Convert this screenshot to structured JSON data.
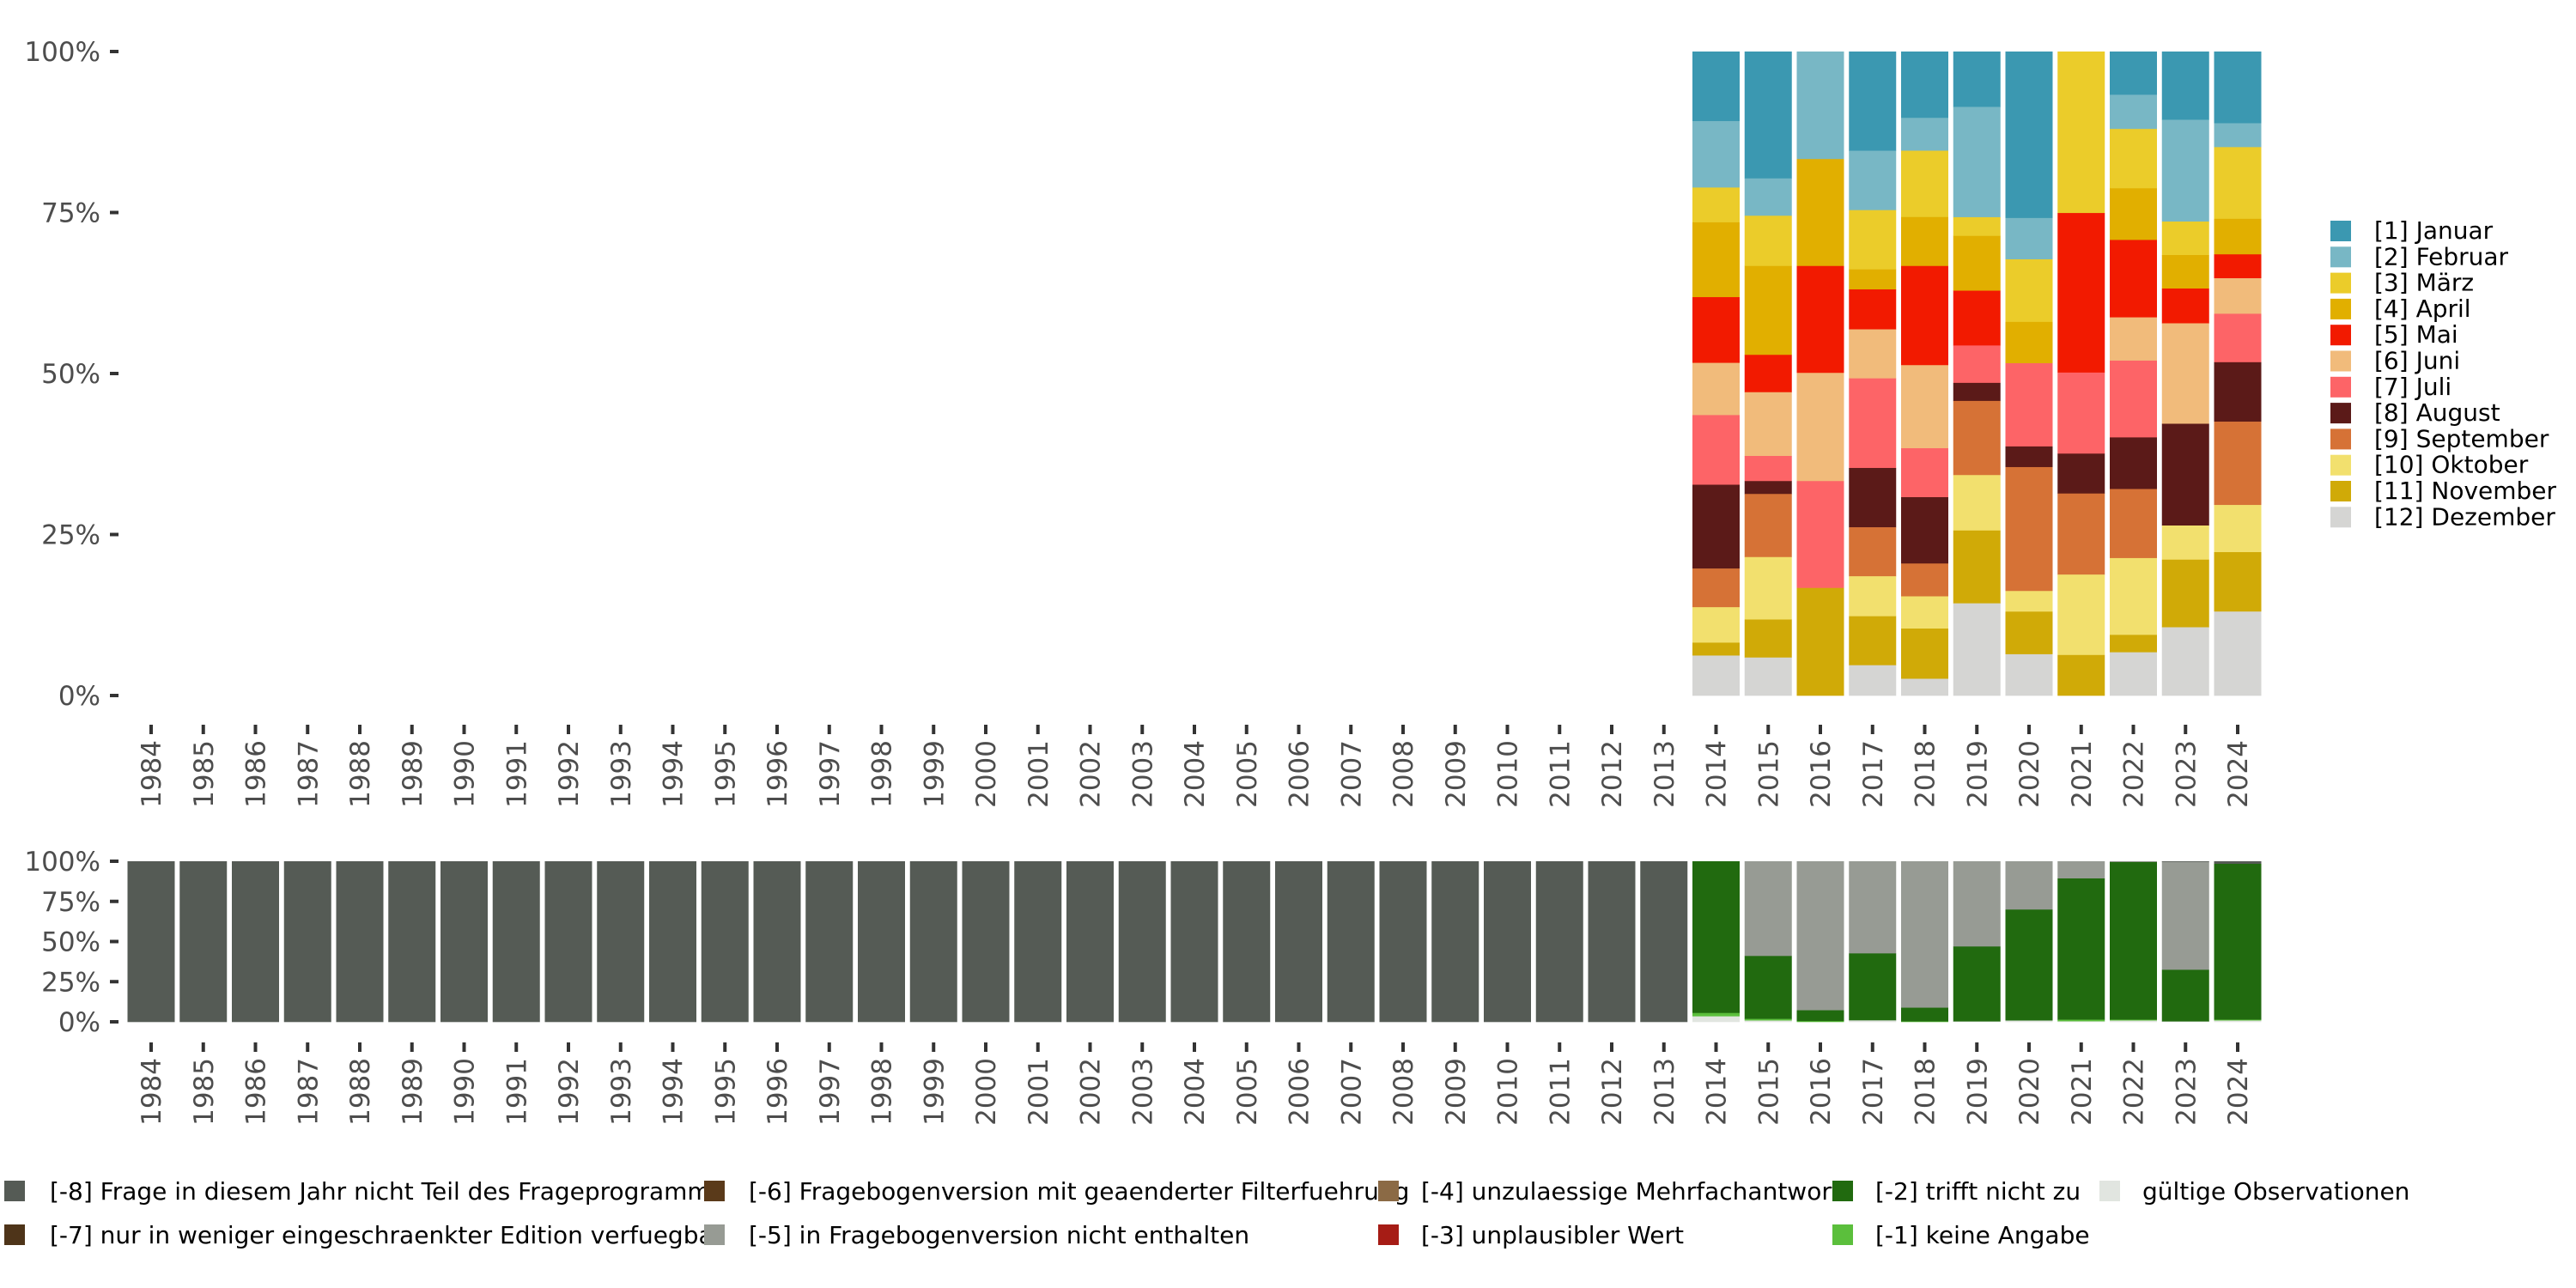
{
  "chart_data": [
    {
      "type": "bar",
      "stacked": true,
      "normalized": true,
      "title": "",
      "xlabel": "",
      "ylabel": "",
      "ylim": [
        0,
        100
      ],
      "yticks": [
        "0%",
        "25%",
        "50%",
        "75%",
        "100%"
      ],
      "grid": false,
      "legend_position": "right",
      "categories": [
        "1984",
        "1985",
        "1986",
        "1987",
        "1988",
        "1989",
        "1990",
        "1991",
        "1992",
        "1993",
        "1994",
        "1995",
        "1996",
        "1997",
        "1998",
        "1999",
        "2000",
        "2001",
        "2002",
        "2003",
        "2004",
        "2005",
        "2006",
        "2007",
        "2008",
        "2009",
        "2010",
        "2011",
        "2012",
        "2013",
        "2014",
        "2015",
        "2016",
        "2017",
        "2018",
        "2019",
        "2020",
        "2021",
        "2022",
        "2023",
        "2024"
      ],
      "series_years": [
        "2014",
        "2015",
        "2016",
        "2017",
        "2018",
        "2019",
        "2020",
        "2021",
        "2022",
        "2023",
        "2024"
      ],
      "series": [
        {
          "name": "[1] Januar",
          "color": "#3b98b1",
          "values": [
            10.8,
            19.7,
            0,
            15.4,
            10.3,
            8.6,
            25.8,
            0,
            6.7,
            10.6,
            11.1
          ]
        },
        {
          "name": "[2] Februar",
          "color": "#78b7c5",
          "values": [
            10.3,
            5.8,
            16.7,
            9.2,
            5.1,
            17.1,
            6.4,
            0,
            5.3,
            15.8,
            3.7
          ]
        },
        {
          "name": "[3] März",
          "color": "#ebcc2a",
          "values": [
            5.4,
            7.8,
            0,
            9.2,
            10.3,
            2.9,
            9.7,
            25.1,
            9.2,
            5.2,
            11.1
          ]
        },
        {
          "name": "[4] April",
          "color": "#e1af00",
          "values": [
            11.6,
            13.8,
            16.6,
            3.1,
            7.6,
            8.5,
            6.4,
            0,
            8.0,
            5.2,
            5.5
          ]
        },
        {
          "name": "[5] Mai",
          "color": "#f21a00",
          "values": [
            10.2,
            5.8,
            16.6,
            6.2,
            15.4,
            8.5,
            0,
            24.8,
            12.0,
            5.4,
            3.7
          ]
        },
        {
          "name": "[6] Juni",
          "color": "#f1bb7b",
          "values": [
            8.1,
            9.9,
            16.8,
            7.6,
            12.9,
            0,
            0,
            0,
            6.7,
            15.6,
            5.5
          ]
        },
        {
          "name": "[7] Juli",
          "color": "#fd6467",
          "values": [
            10.8,
            3.9,
            16.6,
            13.9,
            7.6,
            5.8,
            12.9,
            12.6,
            11.9,
            0,
            7.5
          ]
        },
        {
          "name": "[8] August",
          "color": "#5b1a18",
          "values": [
            13.0,
            2.0,
            0,
            9.2,
            10.3,
            2.8,
            3.2,
            6.2,
            8.0,
            15.8,
            9.2
          ]
        },
        {
          "name": "[9] September",
          "color": "#d67236",
          "values": [
            6.0,
            9.8,
            0,
            7.6,
            5.1,
            11.5,
            19.2,
            12.6,
            10.7,
            0,
            12.9
          ]
        },
        {
          "name": "[10] Oktober",
          "color": "#f2e06e",
          "values": [
            5.5,
            9.7,
            0,
            6.2,
            5.0,
            8.6,
            3.2,
            12.5,
            11.9,
            5.3,
            7.3
          ]
        },
        {
          "name": "[11] November",
          "color": "#d0aa07",
          "values": [
            2.0,
            5.9,
            16.7,
            7.6,
            7.8,
            11.3,
            6.6,
            6.3,
            2.7,
            10.5,
            9.2
          ]
        },
        {
          "name": "[12] Dezember",
          "color": "#d5d5d3",
          "values": [
            6.2,
            5.9,
            0,
            4.7,
            2.6,
            14.3,
            6.4,
            0,
            6.7,
            10.6,
            13.0
          ]
        }
      ]
    },
    {
      "type": "bar",
      "stacked": true,
      "normalized": true,
      "title": "",
      "xlabel": "",
      "ylabel": "",
      "ylim": [
        0,
        100
      ],
      "yticks": [
        "0%",
        "25%",
        "50%",
        "75%",
        "100%"
      ],
      "grid": false,
      "legend_position": "bottom",
      "categories": [
        "1984",
        "1985",
        "1986",
        "1987",
        "1988",
        "1989",
        "1990",
        "1991",
        "1992",
        "1993",
        "1994",
        "1995",
        "1996",
        "1997",
        "1998",
        "1999",
        "2000",
        "2001",
        "2002",
        "2003",
        "2004",
        "2005",
        "2006",
        "2007",
        "2008",
        "2009",
        "2010",
        "2011",
        "2012",
        "2013",
        "2014",
        "2015",
        "2016",
        "2017",
        "2018",
        "2019",
        "2020",
        "2021",
        "2022",
        "2023",
        "2024"
      ],
      "series": [
        {
          "name": "[-8] Frage in diesem Jahr nicht Teil des Frageprogramms",
          "color": "#555b55",
          "values": [
            100,
            100,
            100,
            100,
            100,
            100,
            100,
            100,
            100,
            100,
            100,
            100,
            100,
            100,
            100,
            100,
            100,
            100,
            100,
            100,
            100,
            100,
            100,
            100,
            100,
            100,
            100,
            100,
            100,
            100,
            0,
            0,
            0,
            0,
            0,
            0,
            0,
            0,
            0,
            0.4,
            1.6
          ]
        },
        {
          "name": "[-7] nur in weniger eingeschraenkter Edition verfuegbar",
          "color": "#4e3419",
          "values": [
            0,
            0,
            0,
            0,
            0,
            0,
            0,
            0,
            0,
            0,
            0,
            0,
            0,
            0,
            0,
            0,
            0,
            0,
            0,
            0,
            0,
            0,
            0,
            0,
            0,
            0,
            0,
            0,
            0,
            0,
            0,
            0,
            0,
            0,
            0,
            0,
            0,
            0,
            0,
            0,
            0
          ]
        },
        {
          "name": "[-6] Fragebogenversion mit geaenderter Filterfuehrung",
          "color": "#5a3a1a",
          "values": [
            0,
            0,
            0,
            0,
            0,
            0,
            0,
            0,
            0,
            0,
            0,
            0,
            0,
            0,
            0,
            0,
            0,
            0,
            0,
            0,
            0,
            0,
            0,
            0,
            0,
            0,
            0,
            0,
            0,
            0,
            0,
            0,
            0,
            0,
            0,
            0,
            0,
            0,
            0,
            0,
            0
          ]
        },
        {
          "name": "[-5] in Fragebogenversion nicht enthalten",
          "color": "#979b94",
          "values": [
            0,
            0,
            0,
            0,
            0,
            0,
            0,
            0,
            0,
            0,
            0,
            0,
            0,
            0,
            0,
            0,
            0,
            0,
            0,
            0,
            0,
            0,
            0,
            0,
            0,
            0,
            0,
            0,
            0,
            0,
            0,
            59.0,
            92.8,
            57.4,
            91.2,
            53.1,
            30.1,
            10.7,
            0.5,
            67.2,
            0
          ]
        },
        {
          "name": "[-4] unzulaessige Mehrfachantwort",
          "color": "#8b6a45",
          "values": [
            0,
            0,
            0,
            0,
            0,
            0,
            0,
            0,
            0,
            0,
            0,
            0,
            0,
            0,
            0,
            0,
            0,
            0,
            0,
            0,
            0,
            0,
            0,
            0,
            0,
            0,
            0,
            0,
            0,
            0,
            0,
            0,
            0,
            0,
            0,
            0,
            0,
            0,
            0,
            0,
            0
          ]
        },
        {
          "name": "[-3] unplausibler Wert",
          "color": "#a61c15",
          "values": [
            0,
            0,
            0,
            0,
            0,
            0,
            0,
            0,
            0,
            0,
            0,
            0,
            0,
            0,
            0,
            0,
            0,
            0,
            0,
            0,
            0,
            0,
            0,
            0,
            0,
            0,
            0,
            0,
            0,
            0,
            0,
            0,
            0,
            0,
            0,
            0,
            0,
            0,
            0,
            0,
            0
          ]
        },
        {
          "name": "[-2] trifft nicht zu",
          "color": "#216a0f",
          "values": [
            0,
            0,
            0,
            0,
            0,
            0,
            0,
            0,
            0,
            0,
            0,
            0,
            0,
            0,
            0,
            0,
            0,
            0,
            0,
            0,
            0,
            0,
            0,
            0,
            0,
            0,
            0,
            0,
            0,
            0,
            94.5,
            39.2,
            6.8,
            41.7,
            8.6,
            46.7,
            69.1,
            88.0,
            98.2,
            32.2,
            97.1
          ]
        },
        {
          "name": "[-1] keine Angabe",
          "color": "#5bbf3c",
          "values": [
            0,
            0,
            0,
            0,
            0,
            0,
            0,
            0,
            0,
            0,
            0,
            0,
            0,
            0,
            0,
            0,
            0,
            0,
            0,
            0,
            0,
            0,
            0,
            0,
            0,
            0,
            0,
            0,
            0,
            0,
            2.1,
            1.0,
            0.4,
            0,
            0.2,
            0,
            0,
            1.0,
            0.5,
            0,
            0.5
          ]
        },
        {
          "name": "gültige Observationen",
          "color": "#e1e5e0",
          "values": [
            0,
            0,
            0,
            0,
            0,
            0,
            0,
            0,
            0,
            0,
            0,
            0,
            0,
            0,
            0,
            0,
            0,
            0,
            0,
            0,
            0,
            0,
            0,
            0,
            0,
            0,
            0,
            0,
            0,
            0,
            3.4,
            0.8,
            0,
            0.9,
            0,
            0.2,
            0.8,
            0.3,
            0.8,
            0.2,
            0.8
          ]
        }
      ]
    }
  ]
}
